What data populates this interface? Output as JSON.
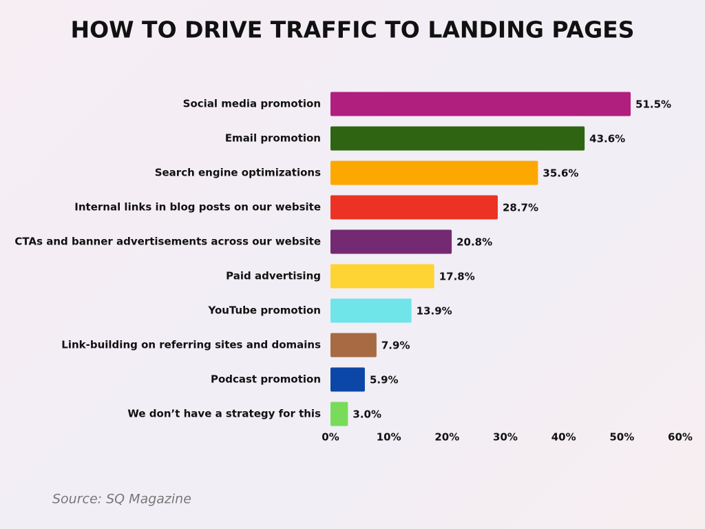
{
  "chart_data": {
    "type": "bar",
    "orientation": "horizontal",
    "title": "HOW TO DRIVE TRAFFIC TO LANDING PAGES",
    "categories": [
      "Social media promotion",
      "Email promotion",
      "Search engine optimizations",
      "Internal links in blog posts on our website",
      "CTAs and banner advertisements across our website",
      "Paid advertising",
      "YouTube promotion",
      "Link-building on referring sites and domains",
      "Podcast promotion",
      "We don’t have a strategy for this"
    ],
    "values": [
      51.5,
      43.6,
      35.6,
      28.7,
      20.8,
      17.8,
      13.9,
      7.9,
      5.9,
      3.0
    ],
    "value_labels": [
      "51.5%",
      "43.6%",
      "35.6%",
      "28.7%",
      "20.8%",
      "17.8%",
      "13.9%",
      "7.9%",
      "5.9%",
      "3.0%"
    ],
    "colors": [
      "#b01f7e",
      "#2f6412",
      "#fca800",
      "#ec3224",
      "#742a72",
      "#fdd434",
      "#6fe5ea",
      "#a86a42",
      "#0c47a8",
      "#78dc5a"
    ],
    "xlim": [
      0,
      60
    ],
    "xticks": [
      {
        "value": 0,
        "label": "0%"
      },
      {
        "value": 10,
        "label": "10%"
      },
      {
        "value": 20,
        "label": "20%"
      },
      {
        "value": 30,
        "label": "30%"
      },
      {
        "value": 40,
        "label": "40%"
      },
      {
        "value": 50,
        "label": "50%"
      },
      {
        "value": 60,
        "label": "60%"
      }
    ],
    "grid": false,
    "source": "Source: SQ Magazine"
  }
}
